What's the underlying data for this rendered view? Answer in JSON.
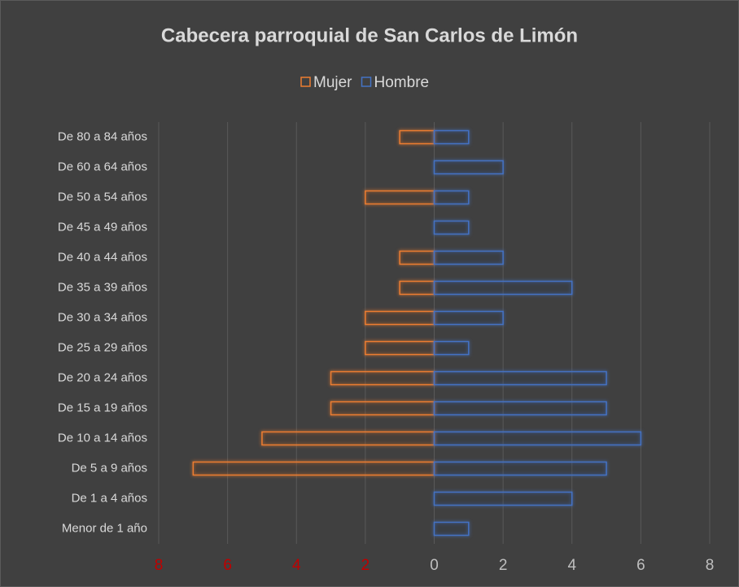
{
  "chart_data": {
    "type": "bar",
    "orientation": "horizontal",
    "stacked": true,
    "title": "Cabecera parroquial de San Carlos de Limón",
    "categories": [
      "De 80 a 84 años",
      "De 60 a 64 años",
      "De 50 a 54 años",
      "De 45 a 49 años",
      "De 40 a 44 años",
      "De 35 a 39 años",
      "De 30 a 34 años",
      "De 25 a 29 años",
      "De 20 a 24 años",
      "De 15 a 19 años",
      "De 10 a 14 años",
      "De 5 a 9 años",
      "De 1 a 4 años",
      "Menor de 1 año"
    ],
    "series": [
      {
        "name": "Mujer",
        "color": "#ed7d31",
        "values": [
          -1,
          0,
          -2,
          0,
          -1,
          -1,
          -2,
          -2,
          -3,
          -3,
          -5,
          -7,
          0,
          0
        ]
      },
      {
        "name": "Hombre",
        "color": "#4472c4",
        "values": [
          1,
          2,
          1,
          1,
          2,
          4,
          2,
          1,
          5,
          5,
          6,
          5,
          4,
          1
        ]
      }
    ],
    "xlim": [
      -8,
      8
    ],
    "xticks": [
      {
        "value": -8,
        "label": "8"
      },
      {
        "value": -6,
        "label": "6"
      },
      {
        "value": -4,
        "label": "4"
      },
      {
        "value": -2,
        "label": "2"
      },
      0,
      2,
      4,
      6,
      8
    ],
    "negative_tick_color": "#c00000",
    "grid": true,
    "legend": "top"
  }
}
